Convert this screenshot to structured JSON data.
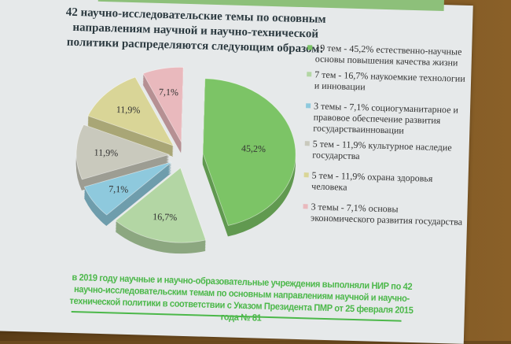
{
  "slide": {
    "title": "42 научно-исследовательские темы по основным направлениям научной и научно-технической политики распределяются следующим образом:",
    "footer": "в 2019 году научные и научно-образовательные учреждения выполняли НИР по 42 научно-исследовательским темам по основным направлениям научной и научно-технической политики в соответствии с Указом Президента ПМР от 25 февраля 2015 года № 81",
    "accent_color": "#4cb84a"
  },
  "chart_data": {
    "type": "pie",
    "style": "3d-exploded",
    "legend_position": "right",
    "slices": [
      {
        "topics": 19,
        "value": 45.2,
        "data_label": "45,2%",
        "legend": "19 тем - 45,2% естественно-научные основы повышения качества жизни",
        "color": "#7cc466"
      },
      {
        "topics": 7,
        "value": 16.7,
        "data_label": "16,7%",
        "legend": "7 тем - 16,7% наукоемкие технологии и инновации",
        "color": "#b3d6a4"
      },
      {
        "topics": 3,
        "value": 7.1,
        "data_label": "7,1%",
        "legend": "3 темы - 7,1% социогуманитарное и правовое обеспечение развития государстваинновации",
        "color": "#8ec9dd"
      },
      {
        "topics": 5,
        "value": 11.9,
        "data_label": "11,9%",
        "legend": "5 тем - 11,9% культурное наследие государства",
        "color": "#c9c9bd"
      },
      {
        "topics": 5,
        "value": 11.9,
        "data_label": "11,9%",
        "legend": "5 тем - 11,9% охрана здоровья человека",
        "color": "#d9d597"
      },
      {
        "topics": 3,
        "value": 7.1,
        "data_label": "7,1%",
        "legend": "3 темы - 7,1% основы экономического развития государства",
        "color": "#e9b9bd"
      }
    ]
  }
}
